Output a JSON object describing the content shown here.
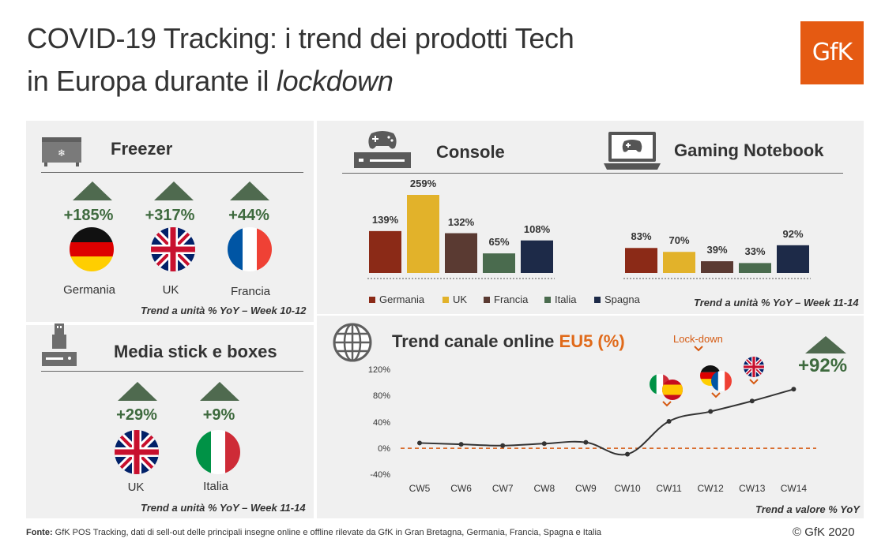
{
  "header": {
    "title_line1": "COVID-19 Tracking: i trend dei prodotti Tech",
    "title_line2_prefix": "in Europa durante il ",
    "title_line2_italic": "lockdown",
    "logo": "GfK"
  },
  "freezer": {
    "title": "Freezer",
    "icon": "freezer-icon",
    "items": [
      {
        "pct": "+185%",
        "country": "Germania",
        "flag": "germany-flag"
      },
      {
        "pct": "+317%",
        "country": "UK",
        "flag": "uk-flag"
      },
      {
        "pct": "+44%",
        "country": "Francia",
        "flag": "france-flag"
      }
    ],
    "note": "Trend a unità % YoY – Week 10-12"
  },
  "media": {
    "title": "Media stick e boxes",
    "icon": "media-stick-icon",
    "items": [
      {
        "pct": "+29%",
        "country": "UK",
        "flag": "uk-flag"
      },
      {
        "pct": "+9%",
        "country": "Italia",
        "flag": "italy-flag"
      }
    ],
    "note": "Trend a unità % YoY –  Week 11-14"
  },
  "console_panel": {
    "title_console": "Console",
    "title_notebook": "Gaming Notebook",
    "icon_console": "console-icon",
    "icon_notebook": "gaming-notebook-icon",
    "note": "Trend a unità % YoY – Week 11-14",
    "legend": [
      {
        "label": "Germania",
        "color": "#8b2a17"
      },
      {
        "label": "UK",
        "color": "#e2b22a"
      },
      {
        "label": "Francia",
        "color": "#5a3a32"
      },
      {
        "label": "Italia",
        "color": "#4a6b4e"
      },
      {
        "label": "Spagna",
        "color": "#1d2a48"
      }
    ]
  },
  "online": {
    "title_prefix": "Trend canale online ",
    "title_accent": "EU5 (%)",
    "icon": "globe-icon",
    "lockdown_label": "Lock-down",
    "big_value": "+92%",
    "note": "Trend a valore % YoY",
    "event_flags": [
      {
        "week": "CW11",
        "flags": [
          "italy-flag",
          "spain-flag"
        ]
      },
      {
        "week": "CW12",
        "flags": [
          "germany-flag",
          "france-flag"
        ]
      },
      {
        "week": "CW13",
        "flags": [
          "uk-flag"
        ]
      }
    ]
  },
  "footer": {
    "source_label": "Fonte:",
    "source_text": " GfK POS Tracking, dati di sell-out delle principali insegne online e offline rilevate da GfK in Gran Bretagna, Germania, Francia, Spagna e Italia",
    "copyright": "© GfK 2020"
  },
  "chart_data": [
    {
      "type": "bar",
      "title": "Console",
      "categories": [
        "Germania",
        "UK",
        "Francia",
        "Italia",
        "Spagna"
      ],
      "values": [
        139,
        259,
        132,
        65,
        108
      ],
      "labels": [
        "139%",
        "259%",
        "132%",
        "65%",
        "108%"
      ],
      "colors": [
        "#8b2a17",
        "#e2b22a",
        "#5a3a32",
        "#4a6b4e",
        "#1d2a48"
      ],
      "ylim": [
        0,
        259
      ]
    },
    {
      "type": "bar",
      "title": "Gaming Notebook",
      "categories": [
        "Germania",
        "UK",
        "Francia",
        "Italia",
        "Spagna"
      ],
      "values": [
        83,
        70,
        39,
        33,
        92
      ],
      "labels": [
        "83%",
        "70%",
        "39%",
        "33%",
        "92%"
      ],
      "colors": [
        "#8b2a17",
        "#e2b22a",
        "#5a3a32",
        "#4a6b4e",
        "#1d2a48"
      ],
      "ylim": [
        0,
        259
      ]
    },
    {
      "type": "line",
      "title": "Trend canale online EU5 (%)",
      "x": [
        "CW5",
        "CW6",
        "CW7",
        "CW8",
        "CW9",
        "CW10",
        "CW11",
        "CW12",
        "CW13",
        "CW14"
      ],
      "values": [
        10,
        8,
        6,
        9,
        11,
        -7,
        43,
        58,
        74,
        92
      ],
      "yticks": [
        "120%",
        "80%",
        "40%",
        "0%",
        "-40%"
      ],
      "ytick_values": [
        120,
        80,
        40,
        0,
        -40
      ],
      "ylim": [
        -40,
        120
      ],
      "reference_line": 2,
      "line_color": "#333333",
      "reference_color": "#d55a12"
    }
  ]
}
